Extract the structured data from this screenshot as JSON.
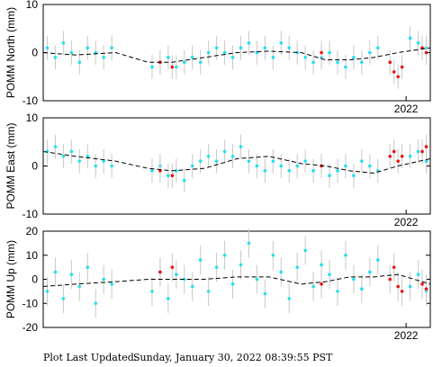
{
  "chart_data": [
    {
      "type": "scatter",
      "ylabel": "POMM North (mm)",
      "xlim": [
        2017.5,
        2022.3
      ],
      "ylim": [
        -10,
        10
      ],
      "yticks": [
        -10,
        0,
        10
      ],
      "xticks": [
        2022
      ],
      "series": [
        {
          "mode": "markers",
          "color": "#22e0f0",
          "error": 2.5,
          "x": [
            2017.55,
            2017.65,
            2017.75,
            2017.85,
            2017.95,
            2018.05,
            2018.15,
            2018.25,
            2018.35,
            2018.85,
            2018.95,
            2019.05,
            2019.15,
            2019.25,
            2019.35,
            2019.45,
            2019.55,
            2019.65,
            2019.75,
            2019.85,
            2019.95,
            2020.05,
            2020.15,
            2020.25,
            2020.35,
            2020.45,
            2020.55,
            2020.65,
            2020.75,
            2020.85,
            2020.95,
            2021.05,
            2021.15,
            2021.25,
            2021.35,
            2021.45,
            2021.55,
            2021.65,
            2022.05,
            2022.15,
            2022.25
          ],
          "values": [
            1,
            -1,
            2,
            0,
            -2,
            1,
            0,
            -1,
            1,
            -3,
            -2,
            -1,
            -3,
            -2,
            -1,
            -2,
            0,
            1,
            0,
            -1,
            1,
            2,
            0,
            1,
            -1,
            2,
            1,
            0,
            -1,
            -2,
            -1,
            0,
            -2,
            -3,
            -1,
            -2,
            0,
            1,
            3,
            2,
            1
          ]
        },
        {
          "mode": "markers",
          "color": "#ee1111",
          "error": 2.5,
          "x": [
            2018.95,
            2019.1,
            2020.95,
            2021.8,
            2021.85,
            2021.9,
            2021.95,
            2022.2,
            2022.25
          ],
          "values": [
            -2,
            -3,
            0,
            -2,
            -4,
            -5,
            -3,
            1,
            0
          ]
        },
        {
          "mode": "line",
          "color": "#000000",
          "x": [
            2017.5,
            2017.9,
            2018.4,
            2018.8,
            2019.1,
            2019.5,
            2019.9,
            2020.3,
            2020.7,
            2021.0,
            2021.3,
            2021.6,
            2021.9,
            2022.3
          ],
          "values": [
            0,
            -0.5,
            0,
            -2,
            -2,
            -1,
            0,
            0.3,
            0,
            -1.5,
            -1.5,
            -1,
            0,
            1
          ]
        }
      ]
    },
    {
      "type": "scatter",
      "ylabel": "POMM East (mm)",
      "xlim": [
        2017.5,
        2022.3
      ],
      "ylim": [
        -10,
        10
      ],
      "yticks": [
        -10,
        0,
        10
      ],
      "xticks": [
        2022
      ],
      "series": [
        {
          "mode": "markers",
          "color": "#22e0f0",
          "error": 2.5,
          "x": [
            2017.55,
            2017.65,
            2017.75,
            2017.85,
            2017.95,
            2018.05,
            2018.15,
            2018.25,
            2018.35,
            2018.85,
            2018.95,
            2019.05,
            2019.15,
            2019.25,
            2019.35,
            2019.45,
            2019.55,
            2019.65,
            2019.75,
            2019.85,
            2019.95,
            2020.05,
            2020.15,
            2020.25,
            2020.35,
            2020.45,
            2020.55,
            2020.65,
            2020.75,
            2020.85,
            2020.95,
            2021.05,
            2021.15,
            2021.25,
            2021.35,
            2021.45,
            2021.55,
            2021.65,
            2022.05,
            2022.15,
            2022.25
          ],
          "values": [
            3,
            4,
            2,
            3,
            1,
            2,
            0,
            1,
            0,
            -1,
            0,
            -2,
            -1,
            -3,
            0,
            1,
            2,
            1,
            3,
            2,
            4,
            1,
            0,
            -1,
            1,
            0,
            -1,
            0,
            1,
            -1,
            0,
            -2,
            -1,
            0,
            -2,
            1,
            0,
            -1,
            2,
            3,
            1
          ]
        },
        {
          "mode": "markers",
          "color": "#ee1111",
          "error": 2.5,
          "x": [
            2018.95,
            2019.1,
            2020.95,
            2021.8,
            2021.85,
            2021.9,
            2021.95,
            2022.2,
            2022.25
          ],
          "values": [
            -1,
            -2,
            0,
            2,
            3,
            1,
            2,
            3,
            4
          ]
        },
        {
          "mode": "line",
          "color": "#000000",
          "x": [
            2017.5,
            2017.9,
            2018.4,
            2018.8,
            2019.1,
            2019.5,
            2019.9,
            2020.3,
            2020.7,
            2021.0,
            2021.3,
            2021.6,
            2021.9,
            2022.3
          ],
          "values": [
            3,
            2,
            1,
            -0.5,
            -1,
            -0.5,
            1.5,
            2,
            0.5,
            0,
            -1,
            -1.5,
            0,
            1.5
          ]
        }
      ]
    },
    {
      "type": "scatter",
      "ylabel": "POMM Up (mm)",
      "xlim": [
        2017.5,
        2022.3
      ],
      "ylim": [
        -20,
        20
      ],
      "yticks": [
        -20,
        -10,
        0,
        10,
        20
      ],
      "xticks": [
        2022
      ],
      "series": [
        {
          "mode": "markers",
          "color": "#22e0f0",
          "error": 6,
          "x": [
            2017.55,
            2017.65,
            2017.75,
            2017.85,
            2017.95,
            2018.05,
            2018.15,
            2018.25,
            2018.35,
            2018.85,
            2018.95,
            2019.05,
            2019.15,
            2019.25,
            2019.35,
            2019.45,
            2019.55,
            2019.65,
            2019.75,
            2019.85,
            2019.95,
            2020.05,
            2020.15,
            2020.25,
            2020.35,
            2020.45,
            2020.55,
            2020.65,
            2020.75,
            2020.85,
            2020.95,
            2021.05,
            2021.15,
            2021.25,
            2021.35,
            2021.45,
            2021.55,
            2021.65,
            2022.05,
            2022.15,
            2022.25
          ],
          "values": [
            -5,
            3,
            -8,
            2,
            -3,
            5,
            -10,
            0,
            -2,
            -5,
            3,
            -8,
            2,
            0,
            -3,
            8,
            -5,
            5,
            10,
            -2,
            6,
            15,
            0,
            -6,
            10,
            3,
            -8,
            5,
            12,
            -3,
            6,
            2,
            -5,
            10,
            0,
            -4,
            3,
            8,
            -3,
            2,
            -5
          ]
        },
        {
          "mode": "markers",
          "color": "#ee1111",
          "error": 6,
          "x": [
            2018.95,
            2019.1,
            2020.95,
            2021.8,
            2021.85,
            2021.9,
            2021.95,
            2022.2,
            2022.25
          ],
          "values": [
            3,
            5,
            -2,
            0,
            5,
            -3,
            -5,
            -2,
            -4
          ]
        },
        {
          "mode": "line",
          "color": "#000000",
          "x": [
            2017.5,
            2017.9,
            2018.4,
            2018.8,
            2019.1,
            2019.5,
            2019.9,
            2020.3,
            2020.7,
            2021.0,
            2021.3,
            2021.6,
            2021.9,
            2022.3
          ],
          "values": [
            -3,
            -2,
            -1,
            0,
            0,
            0,
            1,
            1,
            -2,
            -1,
            1,
            1,
            2,
            -2
          ]
        }
      ]
    }
  ],
  "footer": {
    "label": "Plot Last Updated:",
    "value": "Sunday, January 30, 2022 08:39:55 PST"
  }
}
